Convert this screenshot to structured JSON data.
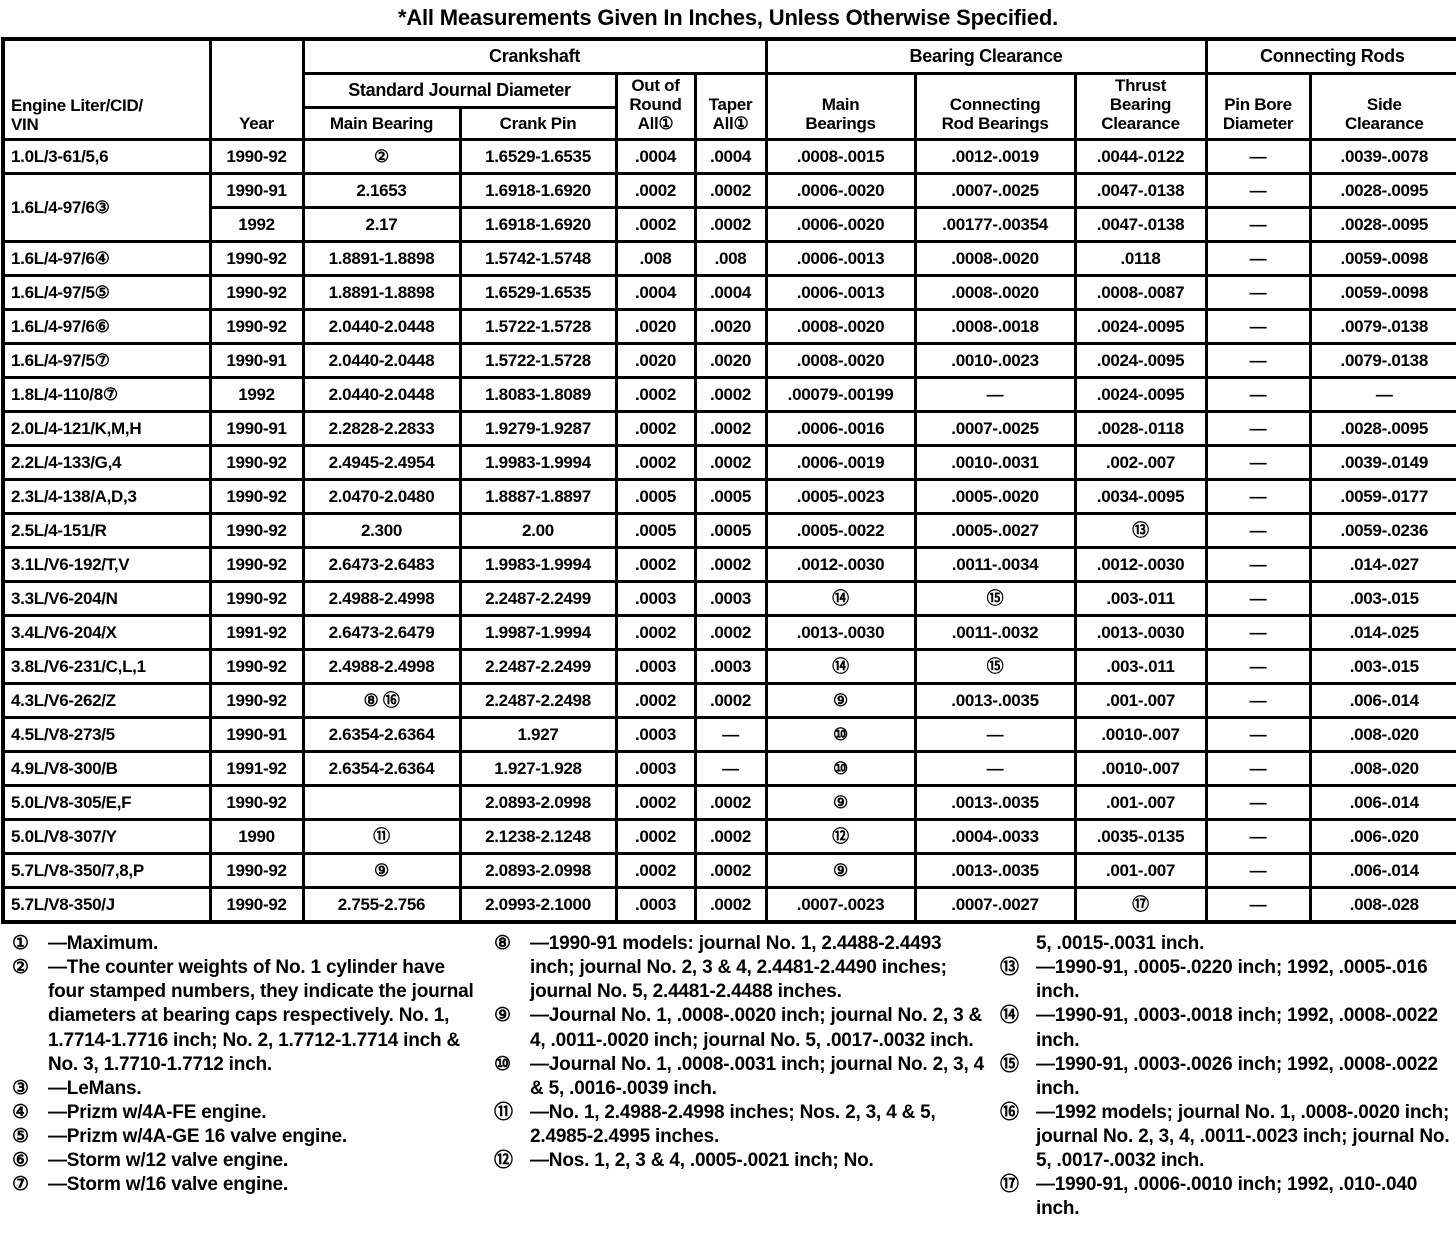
{
  "title": "*All Measurements Given In Inches, Unless Otherwise Specified.",
  "table": {
    "groups": {
      "crankshaft": "Crankshaft",
      "bearing_clearance": "Bearing Clearance",
      "connecting_rods": "Connecting Rods",
      "standard_journal": "Standard Journal Diameter"
    },
    "headers": {
      "engine": "Engine Liter/CID/\nVIN",
      "year": "Year",
      "main_bearing": "Main Bearing",
      "crank_pin": "Crank Pin",
      "out_of_round": "Out of\nRound\nAll①",
      "taper": "Taper\nAll①",
      "main_bearings": "Main\nBearings",
      "conn_rod_bearings": "Connecting\nRod Bearings",
      "thrust": "Thrust\nBearing\nClearance",
      "pin_bore": "Pin Bore\nDiameter",
      "side_clearance": "Side\nClearance"
    },
    "rows": [
      [
        "1.0L/3-61/5,6",
        "1990-92",
        "②",
        "1.6529-1.6535",
        ".0004",
        ".0004",
        ".0008-.0015",
        ".0012-.0019",
        ".0044-.0122",
        "—",
        ".0039-.0078"
      ],
      [
        "1.6L/4-97/6③",
        "1990-91",
        "2.1653",
        "1.6918-1.6920",
        ".0002",
        ".0002",
        ".0006-.0020",
        ".0007-.0025",
        ".0047-.0138",
        "—",
        ".0028-.0095"
      ],
      [
        null,
        "1992",
        "2.17",
        "1.6918-1.6920",
        ".0002",
        ".0002",
        ".0006-.0020",
        ".00177-.00354",
        ".0047-.0138",
        "—",
        ".0028-.0095"
      ],
      [
        "1.6L/4-97/6④",
        "1990-92",
        "1.8891-1.8898",
        "1.5742-1.5748",
        ".008",
        ".008",
        ".0006-.0013",
        ".0008-.0020",
        ".0118",
        "—",
        ".0059-.0098"
      ],
      [
        "1.6L/4-97/5⑤",
        "1990-92",
        "1.8891-1.8898",
        "1.6529-1.6535",
        ".0004",
        ".0004",
        ".0006-.0013",
        ".0008-.0020",
        ".0008-.0087",
        "—",
        ".0059-.0098"
      ],
      [
        "1.6L/4-97/6⑥",
        "1990-92",
        "2.0440-2.0448",
        "1.5722-1.5728",
        ".0020",
        ".0020",
        ".0008-.0020",
        ".0008-.0018",
        ".0024-.0095",
        "—",
        ".0079-.0138"
      ],
      [
        "1.6L/4-97/5⑦",
        "1990-91",
        "2.0440-2.0448",
        "1.5722-1.5728",
        ".0020",
        ".0020",
        ".0008-.0020",
        ".0010-.0023",
        ".0024-.0095",
        "—",
        ".0079-.0138"
      ],
      [
        "1.8L/4-110/8⑦",
        "1992",
        "2.0440-2.0448",
        "1.8083-1.8089",
        ".0002",
        ".0002",
        ".00079-.00199",
        "—",
        ".0024-.0095",
        "—",
        "—"
      ],
      [
        "2.0L/4-121/K,M,H",
        "1990-91",
        "2.2828-2.2833",
        "1.9279-1.9287",
        ".0002",
        ".0002",
        ".0006-.0016",
        ".0007-.0025",
        ".0028-.0118",
        "—",
        ".0028-.0095"
      ],
      [
        "2.2L/4-133/G,4",
        "1990-92",
        "2.4945-2.4954",
        "1.9983-1.9994",
        ".0002",
        ".0002",
        ".0006-.0019",
        ".0010-.0031",
        ".002-.007",
        "—",
        ".0039-.0149"
      ],
      [
        "2.3L/4-138/A,D,3",
        "1990-92",
        "2.0470-2.0480",
        "1.8887-1.8897",
        ".0005",
        ".0005",
        ".0005-.0023",
        ".0005-.0020",
        ".0034-.0095",
        "—",
        ".0059-.0177"
      ],
      [
        "2.5L/4-151/R",
        "1990-92",
        "2.300",
        "2.00",
        ".0005",
        ".0005",
        ".0005-.0022",
        ".0005-.0027",
        "⑬",
        "—",
        ".0059-.0236"
      ],
      [
        "3.1L/V6-192/T,V",
        "1990-92",
        "2.6473-2.6483",
        "1.9983-1.9994",
        ".0002",
        ".0002",
        ".0012-.0030",
        ".0011-.0034",
        ".0012-.0030",
        "—",
        ".014-.027"
      ],
      [
        "3.3L/V6-204/N",
        "1990-92",
        "2.4988-2.4998",
        "2.2487-2.2499",
        ".0003",
        ".0003",
        "⑭",
        "⑮",
        ".003-.011",
        "—",
        ".003-.015"
      ],
      [
        "3.4L/V6-204/X",
        "1991-92",
        "2.6473-2.6479",
        "1.9987-1.9994",
        ".0002",
        ".0002",
        ".0013-.0030",
        ".0011-.0032",
        ".0013-.0030",
        "—",
        ".014-.025"
      ],
      [
        "3.8L/V6-231/C,L,1",
        "1990-92",
        "2.4988-2.4998",
        "2.2487-2.2499",
        ".0003",
        ".0003",
        "⑭",
        "⑮",
        ".003-.011",
        "—",
        ".003-.015"
      ],
      [
        "4.3L/V6-262/Z",
        "1990-92",
        "⑧ ⑯",
        "2.2487-2.2498",
        ".0002",
        ".0002",
        "⑨",
        ".0013-.0035",
        ".001-.007",
        "—",
        ".006-.014"
      ],
      [
        "4.5L/V8-273/5",
        "1990-91",
        "2.6354-2.6364",
        "1.927",
        ".0003",
        "—",
        "⑩",
        "—",
        ".0010-.007",
        "—",
        ".008-.020"
      ],
      [
        "4.9L/V8-300/B",
        "1991-92",
        "2.6354-2.6364",
        "1.927-1.928",
        ".0003",
        "—",
        "⑩",
        "—",
        ".0010-.007",
        "—",
        ".008-.020"
      ],
      [
        "5.0L/V8-305/E,F",
        "1990-92",
        "",
        "2.0893-2.0998",
        ".0002",
        ".0002",
        "⑨",
        ".0013-.0035",
        ".001-.007",
        "—",
        ".006-.014"
      ],
      [
        "5.0L/V8-307/Y",
        "1990",
        "⑪",
        "2.1238-2.1248",
        ".0002",
        ".0002",
        "⑫",
        ".0004-.0033",
        ".0035-.0135",
        "—",
        ".006-.020"
      ],
      [
        "5.7L/V8-350/7,8,P",
        "1990-92",
        "⑨",
        "2.0893-2.0998",
        ".0002",
        ".0002",
        "⑨",
        ".0013-.0035",
        ".001-.007",
        "—",
        ".006-.014"
      ],
      [
        "5.7L/V8-350/J",
        "1990-92",
        "2.755-2.756",
        "2.0993-2.1000",
        ".0003",
        ".0002",
        ".0007-.0023",
        ".0007-.0027",
        "⑰",
        "—",
        ".008-.028"
      ]
    ]
  },
  "footnotes": {
    "columns": [
      [
        {
          "marker": "①",
          "text": "—Maximum."
        },
        {
          "marker": "②",
          "text": "—The counter weights of No. 1 cylinder have four stamped numbers, they indicate the journal diameters at bearing caps respectively. No. 1, 1.7714-1.7716 inch; No. 2, 1.7712-1.7714 inch & No. 3, 1.7710-1.7712 inch."
        },
        {
          "marker": "③",
          "text": "—LeMans."
        },
        {
          "marker": "④",
          "text": "—Prizm w/4A-FE engine."
        },
        {
          "marker": "⑤",
          "text": "—Prizm w/4A-GE 16 valve engine."
        },
        {
          "marker": "⑥",
          "text": "—Storm w/12 valve engine."
        },
        {
          "marker": "⑦",
          "text": "—Storm w/16 valve engine."
        }
      ],
      [
        {
          "marker": "⑧",
          "text": "—1990-91 models: journal No. 1, 2.4488-2.4493 inch; journal No. 2, 3 & 4, 2.4481-2.4490 inches; journal No. 5, 2.4481-2.4488 inches."
        },
        {
          "marker": "⑨",
          "text": "—Journal No. 1, .0008-.0020 inch; journal No. 2, 3 & 4, .0011-.0020 inch; journal No. 5, .0017-.0032 inch."
        },
        {
          "marker": "⑩",
          "text": "—Journal No. 1, .0008-.0031 inch; journal No. 2, 3, 4 & 5, .0016-.0039 inch."
        },
        {
          "marker": "⑪",
          "text": "—No. 1, 2.4988-2.4998 inches; Nos. 2, 3, 4 & 5, 2.4985-2.4995 inches."
        },
        {
          "marker": "⑫",
          "text": "—Nos. 1, 2, 3 & 4, .0005-.0021 inch; No."
        }
      ],
      [
        {
          "marker": "",
          "text": "5, .0015-.0031 inch."
        },
        {
          "marker": "⑬",
          "text": "—1990-91, .0005-.0220 inch; 1992, .0005-.016 inch."
        },
        {
          "marker": "⑭",
          "text": "—1990-91, .0003-.0018 inch; 1992, .0008-.0022 inch."
        },
        {
          "marker": "⑮",
          "text": "—1990-91, .0003-.0026 inch; 1992, .0008-.0022 inch."
        },
        {
          "marker": "⑯",
          "text": "—1992 models; journal No. 1, .0008-.0020 inch; journal No. 2, 3, 4, .0011-.0023 inch; journal No. 5, .0017-.0032 inch."
        },
        {
          "marker": "⑰",
          "text": "—1990-91, .0006-.0010 inch; 1992, .010-.040 inch."
        }
      ]
    ]
  }
}
